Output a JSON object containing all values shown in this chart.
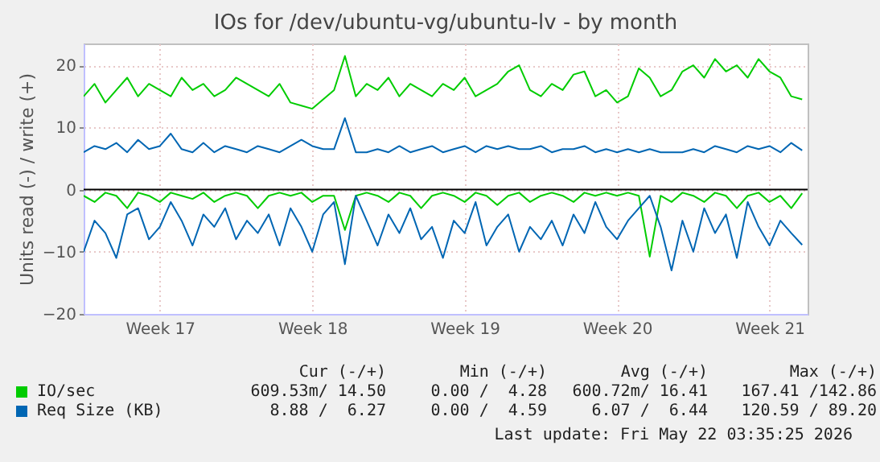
{
  "chart_data": {
    "type": "line",
    "title": "IOs for /dev/ubuntu-vg/ubuntu-lv - by month",
    "ylabel": "Units read (-) / write (+)",
    "categories": [
      null,
      null,
      null,
      null,
      null,
      null,
      null,
      "Week 17",
      null,
      null,
      null,
      null,
      null,
      null,
      null,
      null,
      null,
      null,
      null,
      null,
      null,
      "Week 18",
      null,
      null,
      null,
      null,
      null,
      null,
      null,
      null,
      null,
      null,
      null,
      null,
      null,
      "Week 19",
      null,
      null,
      null,
      null,
      null,
      null,
      null,
      null,
      null,
      null,
      null,
      null,
      null,
      "Week 20",
      null,
      null,
      null,
      null,
      null,
      null,
      null,
      null,
      null,
      null,
      null,
      null,
      null,
      "Week 21",
      null,
      null,
      null
    ],
    "series": [
      {
        "name": "IO/sec",
        "color": "#00cc00",
        "values": [
          15,
          17,
          14,
          16,
          18,
          15,
          17,
          16,
          15,
          18,
          16,
          17,
          15,
          16,
          18,
          17,
          16,
          15,
          17,
          14,
          13.5,
          13,
          14.5,
          16,
          21.5,
          15,
          17,
          16,
          18,
          15,
          17,
          16,
          15,
          17,
          16,
          18,
          15,
          16,
          17,
          19,
          20,
          16,
          15,
          17,
          16,
          18.5,
          19,
          15,
          16,
          14,
          15,
          19.5,
          18,
          15,
          16,
          19,
          20,
          18,
          21,
          19,
          20,
          18,
          21,
          19,
          18,
          15,
          14.5
        ]
      },
      {
        "color": "#00cc00",
        "values": [
          -1,
          -2,
          -0.5,
          -1,
          -3,
          -0.5,
          -1,
          -2,
          -0.5,
          -1,
          -1.5,
          -0.5,
          -2,
          -1,
          -0.5,
          -1,
          -3,
          -1,
          -0.5,
          -1,
          -0.5,
          -2,
          -1,
          -1,
          -6.5,
          -1,
          -0.5,
          -1,
          -2,
          -0.5,
          -1,
          -3,
          -1,
          -0.5,
          -1,
          -2,
          -0.5,
          -1,
          -2.5,
          -1,
          -0.5,
          -2,
          -1,
          -0.5,
          -1,
          -2,
          -0.5,
          -1,
          -0.5,
          -1,
          -0.5,
          -1,
          -10.8,
          -1,
          -2,
          -0.5,
          -1,
          -2,
          -0.5,
          -1,
          -3,
          -1,
          -0.5,
          -2,
          -1,
          -3,
          -0.6
        ]
      },
      {
        "name": "Req Size (KB)",
        "color": "#0066b3",
        "values": [
          6,
          7,
          6.5,
          7.5,
          6,
          8,
          6.5,
          7,
          9,
          6.5,
          6,
          7.5,
          6,
          7,
          6.5,
          6,
          7,
          6.5,
          6,
          7,
          8,
          7,
          6.5,
          6.5,
          11.5,
          6,
          6,
          6.5,
          6,
          7,
          6,
          6.5,
          7,
          6,
          6.5,
          7,
          6,
          7,
          6.5,
          7,
          6.5,
          6.5,
          7,
          6,
          6.5,
          6.5,
          7,
          6,
          6.5,
          6,
          6.5,
          6,
          6.5,
          6,
          6,
          6,
          6.5,
          6,
          7,
          6.5,
          6,
          7,
          6.5,
          7,
          6,
          7.5,
          6.3
        ]
      },
      {
        "color": "#0066b3",
        "values": [
          -10,
          -5,
          -7,
          -11,
          -4,
          -3,
          -8,
          -6,
          -2,
          -5,
          -9,
          -4,
          -6,
          -3,
          -8,
          -5,
          -7,
          -4,
          -9,
          -3,
          -6,
          -10,
          -4,
          -2,
          -12,
          -1,
          -5,
          -9,
          -4,
          -7,
          -3,
          -8,
          -6,
          -11,
          -5,
          -7,
          -2,
          -9,
          -6,
          -4,
          -10,
          -6,
          -8,
          -5,
          -9,
          -4,
          -7,
          -2,
          -6,
          -8,
          -5,
          -3,
          -1,
          -6,
          -13,
          -5,
          -10,
          -3,
          -7,
          -4,
          -11,
          -2,
          -6,
          -9,
          -5,
          -7,
          -8.9
        ]
      }
    ],
    "ylim": [
      -20,
      23.5
    ],
    "yticks": [
      -20,
      -10,
      0,
      10,
      20
    ],
    "ref_lines": [
      {
        "axis": "y",
        "value": 0,
        "color": "#000000"
      }
    ],
    "grid": true,
    "legend": "bottom",
    "annotations": [
      "Cur (-/+)",
      "Min (-/+)",
      "Avg (-/+)",
      "Max (-/+)",
      "609.53m/ 14.50",
      "0.00 /  4.28",
      "600.72m/ 16.41",
      "167.41 /142.86",
      "8.88 /  6.27",
      "0.00 /  4.59",
      "6.07 /  6.44",
      "120.59 / 89.20",
      "Last update: Fri May 22 03:35:25 2026"
    ]
  }
}
